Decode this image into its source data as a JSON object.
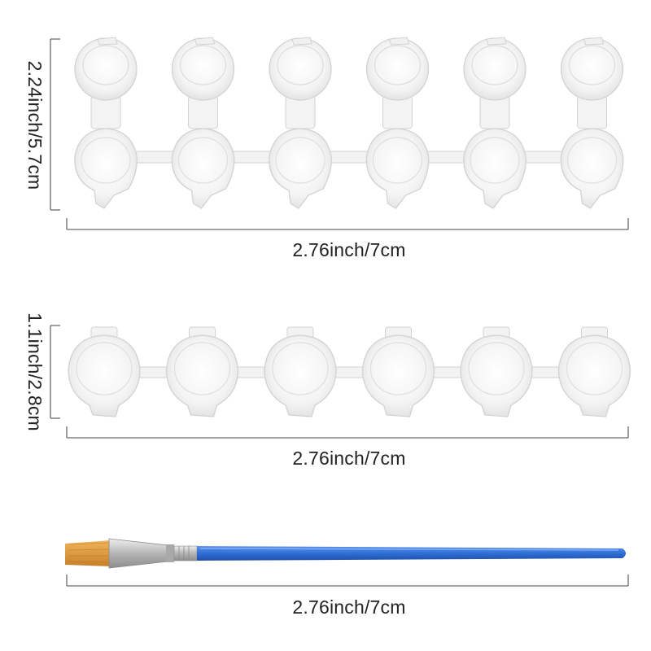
{
  "colors": {
    "dimension_line": "#6a6a6a",
    "dimension_text": "#222222",
    "plastic_fill": "#f6f6f6",
    "plastic_edge": "#d2d2d2",
    "brush_handle": "#2f6fd6",
    "brush_ferrule": "#c9c9c9",
    "brush_bristles": "#e09a35"
  },
  "dimensions": {
    "lidded_strip": {
      "width_label": "2.76inch/7cm",
      "height_label": "2.24inch/5.7cm"
    },
    "open_strip": {
      "width_label": "2.76inch/7cm",
      "height_label": "1.1inch/2.8cm"
    },
    "brush": {
      "length_label": "2.76inch/7cm"
    }
  },
  "products": {
    "lidded_strip_pot_count": 6,
    "open_strip_pot_count": 6,
    "icons": [
      "paint-pot-strip-lidded",
      "paint-pot-strip-open",
      "paint-brush"
    ]
  }
}
